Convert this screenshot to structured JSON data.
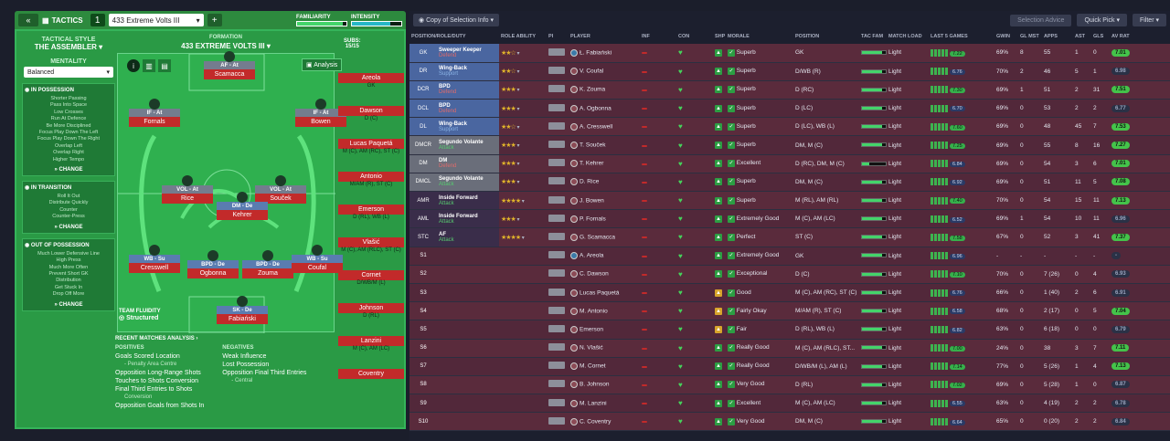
{
  "header": {
    "title": "TACTICS",
    "tactic_number": "1",
    "tactic_name": "433 Extreme Volts III",
    "familiarity_label": "FAMILIARITY",
    "intensity_label": "INTENSITY",
    "familiarity": 0.92,
    "intensity": 0.78
  },
  "side": {
    "style_label": "TACTICAL STYLE",
    "style": "THE ASSEMBLER",
    "mentality_label": "MENTALITY",
    "mentality": "Balanced",
    "in_possession": {
      "title": "IN POSSESSION",
      "items": [
        "Shorter Passing",
        "Pass Into Space",
        "Low Crosses",
        "Run At Defence",
        "Be More Disciplined",
        "Focus Play Down The Left",
        "Focus Play Down The Right",
        "Overlap Left",
        "Overlap Right",
        "Higher Tempo"
      ]
    },
    "in_transition": {
      "title": "IN TRANSITION",
      "items": [
        "Roll It Out",
        "Distribute Quickly",
        "Counter",
        "Counter-Press"
      ]
    },
    "out_of_possession": {
      "title": "OUT OF POSSESSION",
      "items": [
        "Much Lower Defensive Line",
        "High Press",
        "Much More Often",
        "Prevent Short GK",
        "Distribution",
        "Get Stuck In",
        "Drop Off More"
      ]
    },
    "change": "CHANGE"
  },
  "formation": {
    "label": "FORMATION",
    "name": "433 EXTREME VOLTS III",
    "subs_label": "SUBS:",
    "subs": "15/15",
    "analysis": "Analysis",
    "fluidity_label": "TEAM FLUIDITY",
    "fluidity": "Structured"
  },
  "pitch": [
    {
      "role": "AF - At",
      "name": "Scamacca"
    },
    {
      "role": "IF - At",
      "name": "Fornals"
    },
    {
      "role": "IF - At",
      "name": "Bowen"
    },
    {
      "role": "VOL - At",
      "name": "Rice"
    },
    {
      "role": "VOL - At",
      "name": "Souček"
    },
    {
      "role": "DM - De",
      "name": "Kehrer"
    },
    {
      "role": "WB - Su",
      "name": "Cresswell"
    },
    {
      "role": "BPD - De",
      "name": "Ogbonna"
    },
    {
      "role": "BPD - De",
      "name": "Zouma"
    },
    {
      "role": "WB - Su",
      "name": "Coufal"
    },
    {
      "role": "SK - De",
      "name": "Fabiański"
    }
  ],
  "subs": [
    {
      "name": "Areola",
      "pos": "GK"
    },
    {
      "name": "Dawson",
      "pos": "D (C)"
    },
    {
      "name": "Lucas Paquetá",
      "pos": "M (C), AM (RC), ST (C)"
    },
    {
      "name": "Antonio",
      "pos": "M/AM (R), ST (C)"
    },
    {
      "name": "Emerson",
      "pos": "D (RL), WB (L)"
    },
    {
      "name": "Vlašić",
      "pos": "M (C), AM (RLC), ST (C)"
    },
    {
      "name": "Cornet",
      "pos": "D/WB/M (L)"
    },
    {
      "name": "Johnson",
      "pos": "D (RL)"
    },
    {
      "name": "Lanzini",
      "pos": "M (C), AM (LC)"
    },
    {
      "name": "Coventry",
      "pos": ""
    }
  ],
  "recent": {
    "title": "RECENT MATCHES ANALYSIS",
    "positives_label": "POSITIVES",
    "negatives_label": "NEGATIVES",
    "positives": [
      "Goals Scored Location",
      "- Penalty Area Centre",
      "Opposition Long-Range Shots",
      "Touches to Shots Conversion",
      "Final Third Entries to Shots",
      "Conversion",
      "Opposition Goals from Shots In"
    ],
    "negatives": [
      "Weak Influence",
      "Lost Possession",
      "Opposition Final Third Entries",
      "- Central"
    ]
  },
  "right": {
    "copy_label": "Copy of Selection Info",
    "selection_advice": "Selection Advice",
    "quick_pick": "Quick Pick",
    "filter": "Filter",
    "headers": [
      "POSITION/ROLE/DUTY",
      "",
      "ROLE ABILITY",
      "PI",
      "PLAYER",
      "INF",
      "CON",
      "SHP",
      "MORALE",
      "POSITION",
      "TAC FAM",
      "MATCH LOAD",
      "LAST 5 GAMES",
      "GWIN",
      "GL MST",
      "APPS",
      "AST",
      "GLS",
      "AV RAT"
    ],
    "rows": [
      {
        "pos": "GK",
        "role": "Sweeper Keeper",
        "duty": "Defend",
        "stars": "★★☆",
        "player": "Ł. Fabiański",
        "morale": "Superb",
        "position": "GK",
        "load": "Light",
        "last": "7.22",
        "gwin": "69%",
        "glmst": "8",
        "apps": "55",
        "ast": "1",
        "gls": "0",
        "av": "7.01",
        "type": "def"
      },
      {
        "pos": "DR",
        "role": "Wing-Back",
        "duty": "Support",
        "stars": "★★☆",
        "player": "V. Coufal",
        "morale": "Superb",
        "position": "D/WB (R)",
        "load": "Light",
        "last": "6.76",
        "gwin": "70%",
        "glmst": "2",
        "apps": "46",
        "ast": "5",
        "gls": "1",
        "av": "6.98",
        "type": "sup"
      },
      {
        "pos": "DCR",
        "role": "BPD",
        "duty": "Defend",
        "stars": "★★★",
        "player": "K. Zouma",
        "morale": "Superb",
        "position": "D (RC)",
        "load": "Light",
        "last": "7.30",
        "gwin": "69%",
        "glmst": "1",
        "apps": "51",
        "ast": "2",
        "gls": "31",
        "av": "7.51",
        "type": "def"
      },
      {
        "pos": "DCL",
        "role": "BPD",
        "duty": "Defend",
        "stars": "★★★",
        "player": "A. Ogbonna",
        "morale": "Superb",
        "position": "D (LC)",
        "load": "Light",
        "last": "6.70",
        "gwin": "69%",
        "glmst": "0",
        "apps": "53",
        "ast": "2",
        "gls": "2",
        "av": "6.77",
        "type": "def"
      },
      {
        "pos": "DL",
        "role": "Wing-Back",
        "duty": "Support",
        "stars": "★★☆",
        "player": "A. Cresswell",
        "morale": "Superb",
        "position": "D (LC), WB (L)",
        "load": "Light",
        "last": "7.60",
        "gwin": "69%",
        "glmst": "0",
        "apps": "48",
        "ast": "45",
        "gls": "7",
        "av": "7.53",
        "type": "sup"
      },
      {
        "pos": "DMCR",
        "role": "Segundo Volante",
        "duty": "Attack",
        "stars": "★★★",
        "player": "T. Souček",
        "morale": "Superb",
        "position": "DM, M (C)",
        "load": "Light",
        "last": "7.25",
        "gwin": "69%",
        "glmst": "0",
        "apps": "55",
        "ast": "8",
        "gls": "16",
        "av": "7.27",
        "type": "dm"
      },
      {
        "pos": "DM",
        "role": "DM",
        "duty": "Defend",
        "stars": "★★★",
        "player": "T. Kehrer",
        "morale": "Excellent",
        "position": "D (RC), DM, M (C)",
        "load": "Light",
        "last": "6.84",
        "gwin": "69%",
        "glmst": "0",
        "apps": "54",
        "ast": "3",
        "gls": "6",
        "av": "7.01",
        "type": "dm"
      },
      {
        "pos": "DMCL",
        "role": "Segundo Volante",
        "duty": "Attack",
        "stars": "★★★",
        "player": "D. Rice",
        "morale": "Superb",
        "position": "DM, M (C)",
        "load": "Light",
        "last": "6.92",
        "gwin": "69%",
        "glmst": "0",
        "apps": "51",
        "ast": "11",
        "gls": "5",
        "av": "7.08",
        "type": "dm"
      },
      {
        "pos": "AMR",
        "role": "Inside Forward",
        "duty": "Attack",
        "stars": "★★★★",
        "player": "J. Bowen",
        "morale": "Superb",
        "position": "M (RL), AM (RL)",
        "load": "Light",
        "last": "7.40",
        "gwin": "70%",
        "glmst": "0",
        "apps": "54",
        "ast": "15",
        "gls": "11",
        "av": "7.13",
        "type": "att"
      },
      {
        "pos": "AML",
        "role": "Inside Forward",
        "duty": "Attack",
        "stars": "★★★",
        "player": "P. Fornals",
        "morale": "Extremely Good",
        "position": "M (C), AM (LC)",
        "load": "Light",
        "last": "6.52",
        "gwin": "69%",
        "glmst": "1",
        "apps": "54",
        "ast": "10",
        "gls": "11",
        "av": "6.96",
        "type": "att"
      },
      {
        "pos": "STC",
        "role": "AF",
        "duty": "Attack",
        "stars": "★★★★",
        "player": "G. Scamacca",
        "morale": "Perfect",
        "position": "ST (C)",
        "load": "Light",
        "last": "7.58",
        "gwin": "67%",
        "glmst": "0",
        "apps": "52",
        "ast": "3",
        "gls": "41",
        "av": "7.37",
        "type": "att"
      },
      {
        "pos": "S1",
        "player": "A. Areola",
        "morale": "Extremely Good",
        "position": "GK",
        "load": "Light",
        "last": "6.96",
        "gwin": "-",
        "glmst": "-",
        "apps": "-",
        "ast": "-",
        "gls": "-",
        "av": "-"
      },
      {
        "pos": "S2",
        "player": "C. Dawson",
        "morale": "Exceptional",
        "position": "D (C)",
        "load": "Light",
        "last": "7.10",
        "gwin": "70%",
        "glmst": "0",
        "apps": "7 (26)",
        "ast": "0",
        "gls": "4",
        "av": "6.93"
      },
      {
        "pos": "S3",
        "player": "Lucas Paquetá",
        "morale": "Good",
        "position": "M (C), AM (RC), ST (C)",
        "load": "Light",
        "last": "6.76",
        "gwin": "66%",
        "glmst": "0",
        "apps": "1 (40)",
        "ast": "2",
        "gls": "6",
        "av": "6.91"
      },
      {
        "pos": "S4",
        "player": "M. Antonio",
        "morale": "Fairly Okay",
        "position": "M/AM (R), ST (C)",
        "load": "Light",
        "last": "6.58",
        "gwin": "68%",
        "glmst": "0",
        "apps": "2 (17)",
        "ast": "0",
        "gls": "5",
        "av": "7.04"
      },
      {
        "pos": "S5",
        "player": "Emerson",
        "morale": "Fair",
        "position": "D (RL), WB (L)",
        "load": "Light",
        "last": "6.82",
        "gwin": "63%",
        "glmst": "0",
        "apps": "6 (18)",
        "ast": "0",
        "gls": "0",
        "av": "6.79"
      },
      {
        "pos": "S6",
        "player": "N. Vlašić",
        "morale": "Really Good",
        "position": "M (C), AM (RLC), ST...",
        "load": "Light",
        "last": "7.00",
        "gwin": "24%",
        "glmst": "0",
        "apps": "38",
        "ast": "3",
        "gls": "7",
        "av": "7.11"
      },
      {
        "pos": "S7",
        "player": "M. Cornet",
        "morale": "Really Good",
        "position": "D/WB/M (L), AM (L)",
        "load": "Light",
        "last": "7.14",
        "gwin": "77%",
        "glmst": "0",
        "apps": "5 (26)",
        "ast": "1",
        "gls": "4",
        "av": "7.13"
      },
      {
        "pos": "S8",
        "player": "B. Johnson",
        "morale": "Very Good",
        "position": "D (RL)",
        "load": "Light",
        "last": "7.02",
        "gwin": "69%",
        "glmst": "0",
        "apps": "5 (28)",
        "ast": "1",
        "gls": "0",
        "av": "6.87"
      },
      {
        "pos": "S9",
        "player": "M. Lanzini",
        "morale": "Excellent",
        "position": "M (C), AM (LC)",
        "load": "Light",
        "last": "6.55",
        "gwin": "63%",
        "glmst": "0",
        "apps": "4 (19)",
        "ast": "2",
        "gls": "2",
        "av": "6.78"
      },
      {
        "pos": "S10",
        "player": "C. Coventry",
        "morale": "Very Good",
        "position": "DM, M (C)",
        "load": "Light",
        "last": "6.64",
        "gwin": "65%",
        "glmst": "0",
        "apps": "0 (20)",
        "ast": "2",
        "gls": "2",
        "av": "6.84"
      }
    ]
  }
}
